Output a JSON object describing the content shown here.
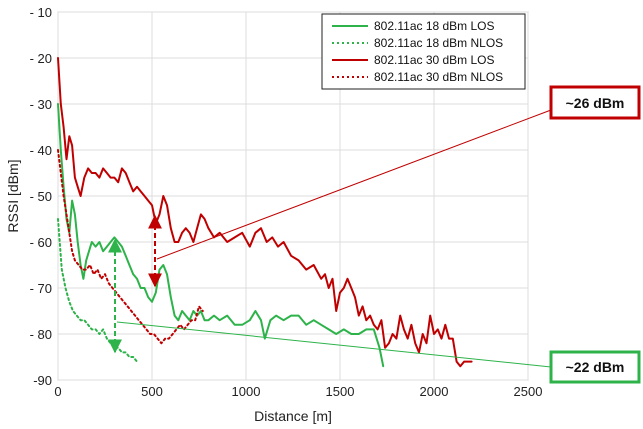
{
  "chart_data": {
    "type": "line",
    "xlabel": "Distance [m]",
    "ylabel": "RSSI [dBm]",
    "xlim": [
      0,
      2500
    ],
    "ylim": [
      -90,
      -10
    ],
    "x_ticks": [
      0,
      500,
      1000,
      1500,
      2000,
      2500
    ],
    "y_ticks": [
      -10,
      -20,
      -30,
      -40,
      -50,
      -60,
      -70,
      -80,
      -90
    ],
    "x_tick_labels": [
      "0",
      "500",
      "1000",
      "1500",
      "2000",
      "2500"
    ],
    "y_tick_labels": [
      "- 10",
      "- 20",
      "- 30",
      "- 40",
      "- 50",
      "- 60",
      "- 70",
      "- 80",
      "-90"
    ],
    "grid": true,
    "legend_position": "top-right",
    "series": [
      {
        "name": "802.11ac 18 dBm LOS",
        "color": "#2db34a",
        "style": "solid",
        "x": [
          0,
          15,
          30,
          45,
          60,
          75,
          90,
          105,
          120,
          135,
          150,
          165,
          180,
          200,
          220,
          240,
          260,
          280,
          300,
          320,
          340,
          360,
          380,
          400,
          420,
          440,
          460,
          480,
          500,
          520,
          540,
          560,
          580,
          600,
          620,
          640,
          660,
          680,
          700,
          720,
          740,
          760,
          780,
          800,
          830,
          860,
          900,
          940,
          980,
          1020,
          1050,
          1080,
          1100,
          1130,
          1160,
          1200,
          1240,
          1280,
          1320,
          1360,
          1400,
          1440,
          1480,
          1520,
          1560,
          1600,
          1640,
          1680,
          1710,
          1730
        ],
        "y": [
          -30,
          -40,
          -48,
          -55,
          -58,
          -51,
          -54,
          -60,
          -65,
          -68,
          -64,
          -62,
          -60,
          -61,
          -60,
          -62,
          -61,
          -60,
          -59,
          -60,
          -61,
          -63,
          -65,
          -67,
          -68,
          -70,
          -70,
          -72,
          -73,
          -71,
          -66,
          -65,
          -67,
          -72,
          -76,
          -77,
          -75,
          -76,
          -77,
          -75,
          -76,
          -75,
          -77,
          -77,
          -76,
          -77,
          -76,
          -78,
          -78,
          -77,
          -75,
          -77,
          -81,
          -77,
          -76,
          -77,
          -76,
          -76,
          -78,
          -77,
          -78,
          -79,
          -80,
          -79,
          -80,
          -80,
          -79,
          -79,
          -83,
          -87
        ]
      },
      {
        "name": "802.11ac 18 dBm NLOS",
        "color": "#2db34a",
        "style": "dotted",
        "x": [
          0,
          20,
          40,
          60,
          80,
          100,
          120,
          140,
          160,
          180,
          200,
          220,
          240,
          260,
          280,
          300,
          320,
          340,
          360,
          380,
          400,
          420
        ],
        "y": [
          -55,
          -66,
          -70,
          -73,
          -75,
          -76,
          -77,
          -77,
          -78,
          -79,
          -79,
          -80,
          -79,
          -81,
          -82,
          -83,
          -83,
          -84,
          -84,
          -85,
          -85,
          -86
        ]
      },
      {
        "name": "802.11ac 30 dBm LOS",
        "color": "#c00000",
        "style": "solid",
        "x": [
          0,
          15,
          30,
          45,
          60,
          75,
          90,
          105,
          120,
          140,
          160,
          180,
          200,
          220,
          240,
          260,
          280,
          300,
          320,
          340,
          360,
          380,
          400,
          420,
          440,
          460,
          480,
          500,
          520,
          540,
          560,
          580,
          600,
          620,
          640,
          660,
          680,
          700,
          720,
          740,
          760,
          780,
          800,
          830,
          860,
          900,
          940,
          980,
          1020,
          1050,
          1080,
          1110,
          1140,
          1170,
          1200,
          1240,
          1280,
          1320,
          1360,
          1400,
          1420,
          1440,
          1460,
          1480,
          1500,
          1520,
          1540,
          1560,
          1580,
          1600,
          1620,
          1640,
          1660,
          1680,
          1700,
          1720,
          1740,
          1760,
          1780,
          1800,
          1820,
          1840,
          1860,
          1880,
          1900,
          1920,
          1940,
          1960,
          1980,
          2000,
          2020,
          2040,
          2060,
          2080,
          2100,
          2120,
          2140,
          2160,
          2180,
          2200
        ],
        "y": [
          -20,
          -30,
          -35,
          -42,
          -37,
          -39,
          -46,
          -48,
          -50,
          -46,
          -44,
          -45,
          -45,
          -46,
          -44,
          -45,
          -46,
          -46,
          -47,
          -44,
          -45,
          -47,
          -49,
          -48,
          -49,
          -50,
          -51,
          -52,
          -56,
          -54,
          -50,
          -52,
          -57,
          -60,
          -60,
          -58,
          -57,
          -58,
          -60,
          -57,
          -54,
          -55,
          -57,
          -59,
          -58,
          -60,
          -59,
          -58,
          -61,
          -58,
          -57,
          -60,
          -59,
          -61,
          -60,
          -63,
          -64,
          -66,
          -65,
          -68,
          -67,
          -70,
          -68,
          -75,
          -71,
          -70,
          -68,
          -70,
          -72,
          -76,
          -74,
          -77,
          -76,
          -78,
          -79,
          -77,
          -83,
          -82,
          -80,
          -81,
          -76,
          -79,
          -81,
          -78,
          -82,
          -84,
          -80,
          -82,
          -76,
          -80,
          -79,
          -81,
          -78,
          -81,
          -81,
          -86,
          -87,
          -86,
          -86,
          -86
        ]
      },
      {
        "name": "802.11ac 30 dBm NLOS",
        "color": "#c00000",
        "style": "dotted",
        "x": [
          0,
          15,
          30,
          45,
          60,
          75,
          90,
          110,
          130,
          150,
          170,
          190,
          210,
          230,
          250,
          270,
          290,
          310,
          330,
          350,
          370,
          390,
          410,
          430,
          450,
          470,
          490,
          510,
          530,
          550,
          570,
          590,
          610,
          630,
          650,
          670,
          690,
          710,
          730,
          750,
          770
        ],
        "y": [
          -40,
          -45,
          -50,
          -54,
          -58,
          -62,
          -64,
          -65,
          -66,
          -66,
          -65,
          -67,
          -66,
          -68,
          -67,
          -69,
          -70,
          -71,
          -72,
          -73,
          -74,
          -75,
          -76,
          -77,
          -78,
          -79,
          -80,
          -80,
          -81,
          -82,
          -81,
          -81,
          -80,
          -79,
          -78,
          -79,
          -78,
          -77,
          -77,
          -74,
          -75
        ]
      }
    ],
    "annotations": [
      {
        "text": "~26 dBm",
        "color": "#c00000"
      },
      {
        "text": "~22 dBm",
        "color": "#2db34a"
      }
    ]
  }
}
